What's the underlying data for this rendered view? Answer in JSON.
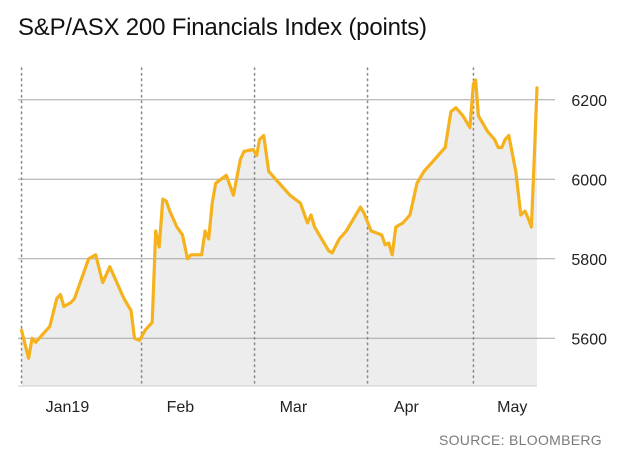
{
  "title": "S&P/ASX 200 Financials Index (points)",
  "source": "SOURCE: BLOOMBERG",
  "colors": {
    "line": "#f5b21d",
    "area": "#ededed",
    "grid": "#a6a6a6",
    "text": "#222222"
  },
  "chart_data": {
    "type": "area",
    "title": "S&P/ASX 200 Financials Index (points)",
    "xlabel": "",
    "ylabel": "",
    "ylim": [
      5480,
      6300
    ],
    "yticks": [
      5600,
      5800,
      6000,
      6200
    ],
    "ytick_labels": [
      "5600",
      "5800",
      "6000",
      "6200"
    ],
    "x_month_labels": [
      "Jan19",
      "Feb",
      "Mar",
      "Apr",
      "May"
    ],
    "x_month_positions": [
      6.5,
      22.5,
      38.5,
      54.5,
      69.5
    ],
    "month_boundaries": [
      0,
      17,
      33,
      49,
      64
    ],
    "x_range": [
      -0.5,
      73
    ],
    "grid": "horizontal solid at ticks, vertical dotted at month starts",
    "series": [
      {
        "values": [
          [
            0,
            5620
          ],
          [
            1,
            5550
          ],
          [
            1.5,
            5600
          ],
          [
            2,
            5590
          ],
          [
            3,
            5610
          ],
          [
            4,
            5630
          ],
          [
            5,
            5700
          ],
          [
            5.5,
            5710
          ],
          [
            6,
            5680
          ],
          [
            7,
            5690
          ],
          [
            7.5,
            5700
          ],
          [
            8.5,
            5750
          ],
          [
            9.5,
            5800
          ],
          [
            10.5,
            5810
          ],
          [
            11.5,
            5740
          ],
          [
            12.5,
            5780
          ],
          [
            13.5,
            5740
          ],
          [
            14.5,
            5700
          ],
          [
            15.5,
            5670
          ],
          [
            16,
            5600
          ],
          [
            16.7,
            5595
          ],
          [
            17.5,
            5620
          ],
          [
            18.5,
            5640
          ],
          [
            19,
            5870
          ],
          [
            19.5,
            5830
          ],
          [
            20,
            5950
          ],
          [
            20.5,
            5945
          ],
          [
            21,
            5920
          ],
          [
            22,
            5880
          ],
          [
            22.8,
            5860
          ],
          [
            23.5,
            5800
          ],
          [
            24,
            5810
          ],
          [
            25.5,
            5810
          ],
          [
            26,
            5870
          ],
          [
            26.5,
            5850
          ],
          [
            27,
            5940
          ],
          [
            27.5,
            5990
          ],
          [
            29,
            6010
          ],
          [
            30,
            5960
          ],
          [
            31,
            6050
          ],
          [
            31.5,
            6070
          ],
          [
            32.8,
            6075
          ],
          [
            33.3,
            6060
          ],
          [
            33.7,
            6100
          ],
          [
            34.3,
            6110
          ],
          [
            35,
            6020
          ],
          [
            36,
            6000
          ],
          [
            37,
            5980
          ],
          [
            38,
            5960
          ],
          [
            39.5,
            5940
          ],
          [
            40.5,
            5890
          ],
          [
            41,
            5910
          ],
          [
            41.5,
            5880
          ],
          [
            42.5,
            5850
          ],
          [
            43.5,
            5820
          ],
          [
            44,
            5815
          ],
          [
            45,
            5850
          ],
          [
            46,
            5870
          ],
          [
            47,
            5900
          ],
          [
            48,
            5930
          ],
          [
            48.5,
            5915
          ],
          [
            49.5,
            5870
          ],
          [
            51,
            5860
          ],
          [
            51.5,
            5835
          ],
          [
            52,
            5840
          ],
          [
            52.5,
            5810
          ],
          [
            53,
            5880
          ],
          [
            54,
            5890
          ],
          [
            55,
            5910
          ],
          [
            56,
            5990
          ],
          [
            57,
            6020
          ],
          [
            58,
            6040
          ],
          [
            59,
            6060
          ],
          [
            60,
            6080
          ],
          [
            60.8,
            6170
          ],
          [
            61.5,
            6180
          ],
          [
            62.5,
            6160
          ],
          [
            63.5,
            6130
          ],
          [
            64,
            6240
          ],
          [
            64.3,
            6250
          ],
          [
            64.7,
            6160
          ],
          [
            66,
            6120
          ],
          [
            67,
            6100
          ],
          [
            67.5,
            6080
          ],
          [
            68,
            6080
          ],
          [
            68.5,
            6100
          ],
          [
            69,
            6110
          ],
          [
            70,
            6020
          ],
          [
            70.7,
            5910
          ],
          [
            71.3,
            5920
          ],
          [
            71.8,
            5900
          ],
          [
            72.2,
            5880
          ],
          [
            72.6,
            6050
          ],
          [
            73,
            6230
          ]
        ]
      }
    ]
  }
}
